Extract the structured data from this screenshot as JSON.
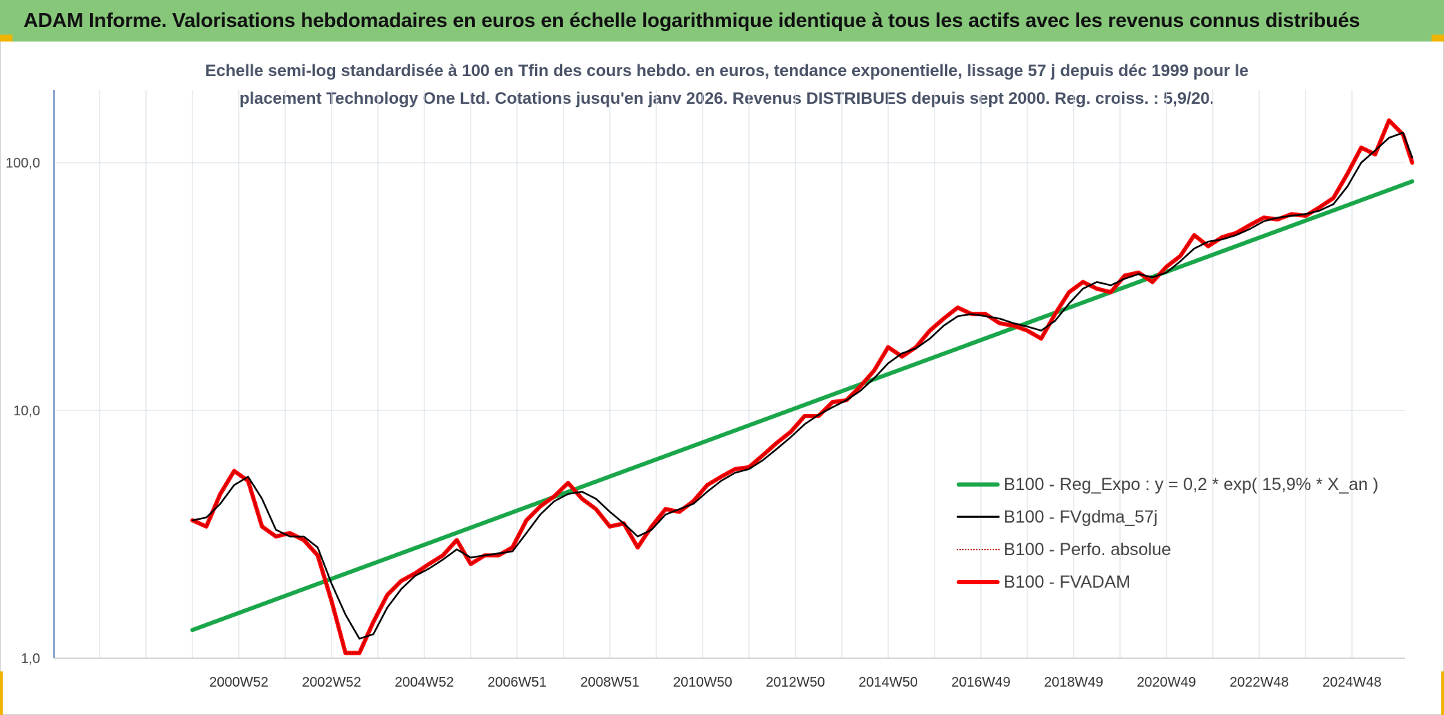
{
  "banner": {
    "title": "ADAM Informe. Valorisations hebdomadaires en euros en échelle logarithmique identique à tous les actifs avec les revenus connus distribués"
  },
  "chart_data": {
    "type": "line",
    "title_line1": "Echelle semi-log standardisée à 100 en Tfin des cours hebdo. en euros, tendance exponentielle, lissage 57 j depuis déc 1999 pour le",
    "title_line2": "placement Technology One Ltd. Cotations jusqu'en janv 2026. Revenus DISTRIBUES depuis sept 2000. Reg. croiss. : 5,9/20.",
    "y_scale": "log",
    "ylim": [
      1,
      200
    ],
    "y_ticks": [
      "1,0",
      "10,0",
      "100,0"
    ],
    "y_tick_values": [
      1,
      10,
      100
    ],
    "xlim": [
      1998.0,
      2026.5
    ],
    "x_ticks": [
      "2000W52",
      "2002W52",
      "2004W52",
      "2006W51",
      "2008W51",
      "2010W50",
      "2012W50",
      "2014W50",
      "2016W49",
      "2018W49",
      "2020W49",
      "2022W48",
      "2024W48"
    ],
    "x_tick_values": [
      2001.0,
      2003.0,
      2005.0,
      2007.0,
      2009.0,
      2011.0,
      2013.0,
      2015.0,
      2017.0,
      2019.0,
      2021.0,
      2023.0,
      2025.0
    ],
    "grid": "vertical-and-horizontal",
    "legend_position": "bottom-right",
    "series": [
      {
        "name": "B100 - Reg_Expo : y = 0,2 * exp( 15,9% *  X_an )",
        "color": "#1aa64a",
        "style": "solid-thick",
        "x": [
          2000.0,
          2026.3
        ],
        "y": [
          1.3,
          84
        ]
      },
      {
        "name": "B100 - FVgdma_57j",
        "color": "#000000",
        "style": "solid",
        "x": [
          2000.0,
          2000.3,
          2000.6,
          2000.9,
          2001.2,
          2001.5,
          2001.8,
          2002.1,
          2002.4,
          2002.7,
          2003.0,
          2003.3,
          2003.6,
          2003.9,
          2004.2,
          2004.5,
          2004.8,
          2005.1,
          2005.4,
          2005.7,
          2006.0,
          2006.3,
          2006.6,
          2006.9,
          2007.2,
          2007.5,
          2007.8,
          2008.1,
          2008.4,
          2008.7,
          2009.0,
          2009.3,
          2009.6,
          2009.9,
          2010.2,
          2010.5,
          2010.8,
          2011.1,
          2011.4,
          2011.7,
          2012.0,
          2012.3,
          2012.6,
          2012.9,
          2013.2,
          2013.5,
          2013.8,
          2014.1,
          2014.4,
          2014.7,
          2015.0,
          2015.3,
          2015.6,
          2015.9,
          2016.2,
          2016.5,
          2016.8,
          2017.1,
          2017.4,
          2017.7,
          2018.0,
          2018.3,
          2018.6,
          2018.9,
          2019.2,
          2019.5,
          2019.8,
          2020.1,
          2020.4,
          2020.7,
          2021.0,
          2021.3,
          2021.6,
          2021.9,
          2022.2,
          2022.5,
          2022.8,
          2023.1,
          2023.4,
          2023.7,
          2024.0,
          2024.3,
          2024.6,
          2024.9,
          2025.2,
          2025.5,
          2025.8,
          2026.1,
          2026.3
        ],
        "y": [
          3.6,
          3.7,
          4.2,
          5.0,
          5.4,
          4.4,
          3.3,
          3.1,
          3.1,
          2.8,
          2.0,
          1.5,
          1.2,
          1.25,
          1.6,
          1.9,
          2.15,
          2.3,
          2.5,
          2.75,
          2.55,
          2.6,
          2.65,
          2.7,
          3.2,
          3.8,
          4.3,
          4.6,
          4.7,
          4.4,
          3.9,
          3.5,
          3.1,
          3.3,
          3.8,
          4.0,
          4.2,
          4.7,
          5.2,
          5.6,
          5.8,
          6.3,
          7.0,
          7.8,
          8.8,
          9.6,
          10.3,
          11.0,
          12.0,
          13.5,
          15.5,
          17.0,
          17.8,
          19.5,
          22.0,
          24.0,
          24.5,
          24.0,
          23.5,
          22.5,
          21.8,
          21.0,
          23.0,
          27.0,
          31.0,
          33.0,
          32.0,
          34.0,
          35.5,
          34.5,
          36.0,
          40.0,
          45.0,
          48.0,
          49.0,
          51.0,
          54.0,
          58.0,
          60.0,
          61.0,
          62.0,
          64.0,
          68.0,
          80.0,
          100.0,
          112.0,
          126.0,
          132.0,
          105.0
        ]
      },
      {
        "name": "B100 - Perfo. absolue",
        "color": "#c00000",
        "style": "dotted",
        "x": [
          2000.0,
          2000.3,
          2000.6,
          2000.9,
          2001.2,
          2001.5,
          2001.8,
          2002.1,
          2002.4,
          2002.7,
          2003.0,
          2003.3,
          2003.6,
          2003.9,
          2004.2,
          2004.5,
          2004.8,
          2005.1,
          2005.4,
          2005.7,
          2006.0,
          2006.3,
          2006.6,
          2006.9,
          2007.2,
          2007.5,
          2007.8,
          2008.1,
          2008.4,
          2008.7,
          2009.0,
          2009.3,
          2009.6,
          2009.9,
          2010.2,
          2010.5,
          2010.8,
          2011.1,
          2011.4,
          2011.7,
          2012.0,
          2012.3,
          2012.6,
          2012.9,
          2013.2,
          2013.5,
          2013.8,
          2014.1,
          2014.4,
          2014.7,
          2015.0,
          2015.3,
          2015.6,
          2015.9,
          2016.2,
          2016.5,
          2016.8,
          2017.1,
          2017.4,
          2017.7,
          2018.0,
          2018.3,
          2018.6,
          2018.9,
          2019.2,
          2019.5,
          2019.8,
          2020.1,
          2020.4,
          2020.7,
          2021.0,
          2021.3,
          2021.6,
          2021.9,
          2022.2,
          2022.5,
          2022.8,
          2023.1,
          2023.4,
          2023.7,
          2024.0,
          2024.3,
          2024.6,
          2024.9,
          2025.2,
          2025.5,
          2025.8,
          2026.1,
          2026.3
        ],
        "y": [
          3.6,
          3.4,
          4.6,
          5.7,
          5.2,
          3.4,
          3.1,
          3.2,
          3.0,
          2.6,
          1.7,
          1.05,
          1.05,
          1.4,
          1.8,
          2.05,
          2.2,
          2.4,
          2.6,
          3.0,
          2.4,
          2.6,
          2.6,
          2.8,
          3.6,
          4.1,
          4.5,
          5.1,
          4.4,
          4.0,
          3.4,
          3.5,
          2.8,
          3.4,
          4.0,
          3.9,
          4.3,
          5.0,
          5.4,
          5.8,
          5.9,
          6.6,
          7.4,
          8.2,
          9.5,
          9.5,
          10.8,
          11.0,
          12.5,
          14.5,
          18.0,
          16.5,
          18.0,
          21.0,
          23.5,
          26.0,
          24.5,
          24.5,
          22.5,
          22.0,
          21.0,
          19.5,
          24.5,
          30.0,
          33.0,
          31.0,
          30.0,
          35.0,
          36.0,
          33.0,
          38.0,
          42.0,
          51.0,
          46.0,
          50.0,
          52.0,
          56.0,
          60.0,
          59.0,
          62.0,
          61.0,
          66.0,
          72.0,
          90.0,
          115.0,
          108.0,
          148.0,
          130.0,
          100.0
        ]
      },
      {
        "name": "B100 - FVADAM",
        "color": "#ff0000",
        "style": "solid-thick",
        "x": [
          2000.0,
          2000.3,
          2000.6,
          2000.9,
          2001.2,
          2001.5,
          2001.8,
          2002.1,
          2002.4,
          2002.7,
          2003.0,
          2003.3,
          2003.6,
          2003.9,
          2004.2,
          2004.5,
          2004.8,
          2005.1,
          2005.4,
          2005.7,
          2006.0,
          2006.3,
          2006.6,
          2006.9,
          2007.2,
          2007.5,
          2007.8,
          2008.1,
          2008.4,
          2008.7,
          2009.0,
          2009.3,
          2009.6,
          2009.9,
          2010.2,
          2010.5,
          2010.8,
          2011.1,
          2011.4,
          2011.7,
          2012.0,
          2012.3,
          2012.6,
          2012.9,
          2013.2,
          2013.5,
          2013.8,
          2014.1,
          2014.4,
          2014.7,
          2015.0,
          2015.3,
          2015.6,
          2015.9,
          2016.2,
          2016.5,
          2016.8,
          2017.1,
          2017.4,
          2017.7,
          2018.0,
          2018.3,
          2018.6,
          2018.9,
          2019.2,
          2019.5,
          2019.8,
          2020.1,
          2020.4,
          2020.7,
          2021.0,
          2021.3,
          2021.6,
          2021.9,
          2022.2,
          2022.5,
          2022.8,
          2023.1,
          2023.4,
          2023.7,
          2024.0,
          2024.3,
          2024.6,
          2024.9,
          2025.2,
          2025.5,
          2025.8,
          2026.1,
          2026.3
        ],
        "y": [
          3.6,
          3.4,
          4.6,
          5.7,
          5.2,
          3.4,
          3.1,
          3.2,
          3.0,
          2.6,
          1.7,
          1.05,
          1.05,
          1.4,
          1.8,
          2.05,
          2.2,
          2.4,
          2.6,
          3.0,
          2.4,
          2.6,
          2.6,
          2.8,
          3.6,
          4.1,
          4.5,
          5.1,
          4.4,
          4.0,
          3.4,
          3.5,
          2.8,
          3.4,
          4.0,
          3.9,
          4.3,
          5.0,
          5.4,
          5.8,
          5.9,
          6.6,
          7.4,
          8.2,
          9.5,
          9.5,
          10.8,
          11.0,
          12.5,
          14.5,
          18.0,
          16.5,
          18.0,
          21.0,
          23.5,
          26.0,
          24.5,
          24.5,
          22.5,
          22.0,
          21.0,
          19.5,
          24.5,
          30.0,
          33.0,
          31.0,
          30.0,
          35.0,
          36.0,
          33.0,
          38.0,
          42.0,
          51.0,
          46.0,
          50.0,
          52.0,
          56.0,
          60.0,
          59.0,
          62.0,
          61.0,
          66.0,
          72.0,
          90.0,
          115.0,
          108.0,
          148.0,
          130.0,
          100.0
        ]
      }
    ]
  }
}
